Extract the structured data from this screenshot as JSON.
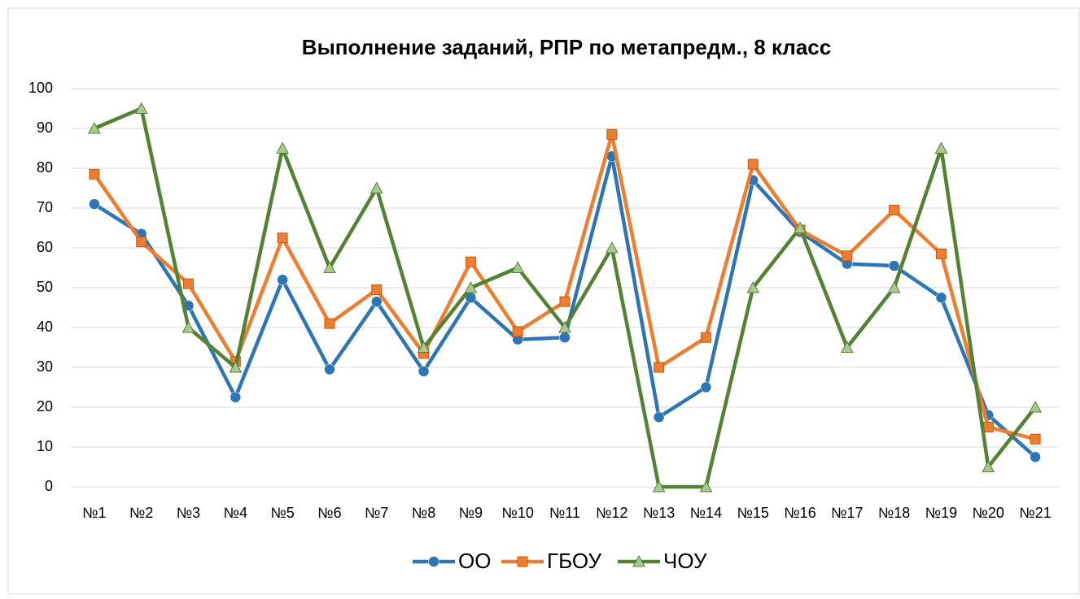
{
  "chart_data": {
    "type": "line",
    "title": "Выполнение заданий, РПР по метапредм., 8 класс",
    "categories": [
      "№1",
      "№2",
      "№3",
      "№4",
      "№5",
      "№6",
      "№7",
      "№8",
      "№9",
      "№10",
      "№11",
      "№12",
      "№13",
      "№14",
      "№15",
      "№16",
      "№17",
      "№18",
      "№19",
      "№20",
      "№21"
    ],
    "series": [
      {
        "name": "ОО",
        "color": "#2e75b6",
        "marker": "circle",
        "values": [
          71,
          63.5,
          45.5,
          22.5,
          52,
          29.5,
          46.5,
          29,
          47.5,
          37,
          37.5,
          83,
          17.5,
          25,
          77,
          64,
          56,
          55.5,
          47.5,
          18,
          7.5
        ]
      },
      {
        "name": "ГБОУ",
        "color": "#ed7d31",
        "marker": "square",
        "values": [
          78.5,
          61.5,
          51,
          31.5,
          62.5,
          41,
          49.5,
          33.5,
          56.5,
          39,
          46.5,
          88.5,
          30,
          37.5,
          81,
          64.5,
          58,
          69.5,
          58.5,
          15,
          12
        ]
      },
      {
        "name": "ЧОУ",
        "color": "#548235",
        "marker": "triangle",
        "values": [
          90,
          95,
          40,
          30,
          85,
          55,
          75,
          35,
          50,
          55,
          40,
          60,
          0,
          0,
          50,
          65,
          35,
          50,
          85,
          5,
          20
        ]
      }
    ],
    "ylim": [
      0,
      100
    ],
    "yticks": [
      0,
      10,
      20,
      30,
      40,
      50,
      60,
      70,
      80,
      90,
      100
    ],
    "grid": true,
    "legend": "bottom"
  }
}
